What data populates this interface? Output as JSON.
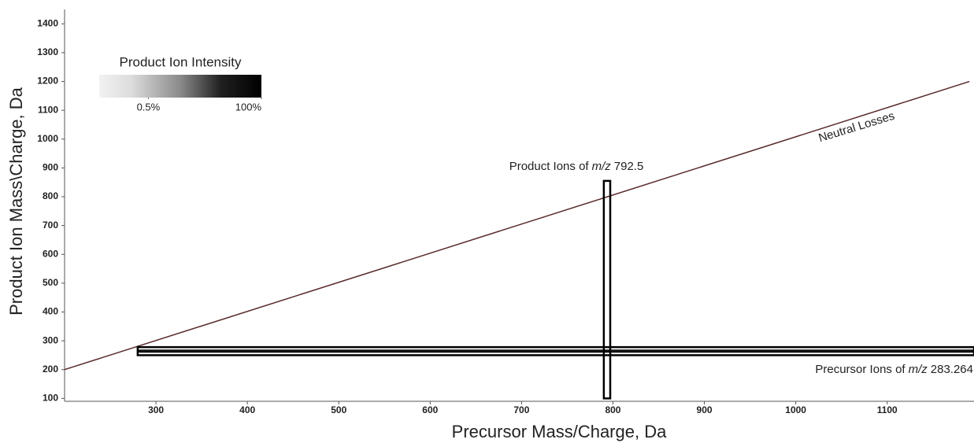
{
  "chart_data": {
    "type": "heatmap",
    "x_label": "Precursor Mass/Charge, Da",
    "y_label": "Product Ion Mass\\Charge, Da",
    "xlim": [
      200,
      1195
    ],
    "ylim": [
      90,
      1450
    ],
    "xticks": [
      300,
      400,
      500,
      600,
      700,
      800,
      900,
      1000,
      1100
    ],
    "yticks": [
      100,
      200,
      300,
      400,
      500,
      600,
      700,
      800,
      900,
      1000,
      1100,
      1200,
      1300,
      1400
    ],
    "grid": false,
    "color": "#5a2a2a",
    "lines": [
      {
        "x": [
          200,
          1190
        ],
        "y": [
          200,
          1200
        ]
      },
      {
        "x": [
          280,
          1195
        ],
        "y": [
          264,
          264
        ]
      }
    ],
    "regions": [
      {
        "xlim": [
          790,
          797
        ],
        "ylim": [
          100,
          855
        ]
      },
      {
        "xlim": [
          280,
          1195
        ],
        "ylim": [
          250,
          278
        ]
      }
    ],
    "colorbar": {
      "title": "Product Ion Intensity",
      "clim": [
        0.05,
        100
      ],
      "log": true,
      "ticks": [
        {
          "value": 0.5,
          "label": "0.5%"
        },
        {
          "value": 100,
          "label": "100%"
        }
      ]
    },
    "annotations": [
      {
        "text": "Neutral Losses"
      },
      {
        "prefix": "Product Ions of",
        "italic": "m/z",
        "suffix": "792.5"
      },
      {
        "prefix": "Precursor Ions of",
        "italic": "m/z",
        "suffix": "283.264"
      }
    ]
  }
}
